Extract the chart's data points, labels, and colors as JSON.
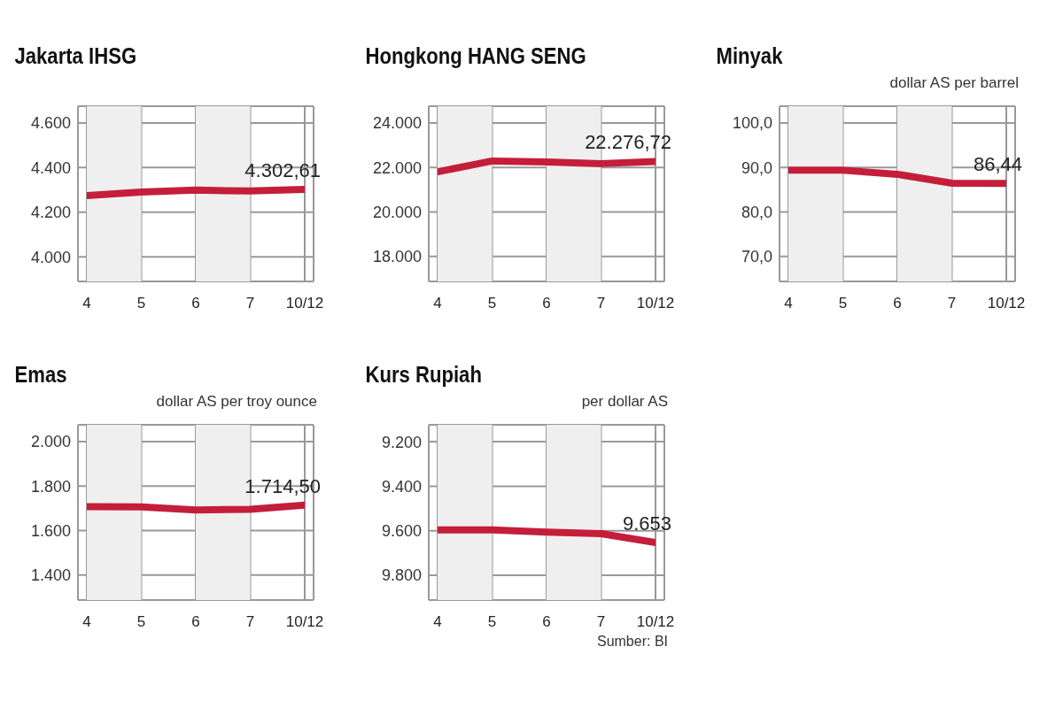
{
  "chart_data": [
    {
      "type": "line",
      "title": "Jakarta IHSG",
      "categories": [
        "4",
        "5",
        "6",
        "7",
        "10/12"
      ],
      "values": [
        4275,
        4290,
        4299,
        4295,
        4302.61
      ],
      "value_labels": [
        null,
        null,
        null,
        null,
        "4.302,61"
      ],
      "color": "#c41e3a",
      "ylim": [
        3890,
        4675
      ],
      "yticks": [
        {
          "value": 4000,
          "label": "4.000"
        },
        {
          "value": 4200,
          "label": "4.200"
        },
        {
          "value": 4400,
          "label": "4.400"
        },
        {
          "value": 4600,
          "label": "4.600"
        }
      ],
      "grid": true,
      "marker": "none",
      "bands": [
        {
          "axis": "x",
          "from": "4",
          "to": "5",
          "color": "#efefef"
        },
        {
          "axis": "x",
          "from": "6",
          "to": "7",
          "color": "#efefef"
        }
      ]
    },
    {
      "type": "line",
      "title": "Hongkong HANG SENG",
      "categories": [
        "4",
        "5",
        "6",
        "7",
        "10/12"
      ],
      "values": [
        21807,
        22296,
        22252,
        22178,
        22276.72
      ],
      "value_labels": [
        null,
        null,
        null,
        null,
        "22.276,72"
      ],
      "color": "#c41e3a",
      "ylim": [
        16880,
        24760
      ],
      "yticks": [
        {
          "value": 18000,
          "label": "18.000"
        },
        {
          "value": 20000,
          "label": "20.000"
        },
        {
          "value": 22000,
          "label": "22.000"
        },
        {
          "value": 24000,
          "label": "24.000"
        }
      ],
      "grid": true,
      "marker": "none",
      "bands": [
        {
          "axis": "x",
          "from": "4",
          "to": "5",
          "color": "#efefef"
        },
        {
          "axis": "x",
          "from": "6",
          "to": "7",
          "color": "#efefef"
        }
      ]
    },
    {
      "type": "line",
      "title": "Minyak",
      "subtitle": "dollar AS per barrel",
      "categories": [
        "4",
        "5",
        "6",
        "7",
        "10/12"
      ],
      "values": [
        89.4,
        89.4,
        88.5,
        86.5,
        86.44
      ],
      "value_labels": [
        null,
        null,
        null,
        null,
        "86,44"
      ],
      "color": "#c41e3a",
      "ylim": [
        64.4,
        103.8
      ],
      "yticks": [
        {
          "value": 70,
          "label": "70,0"
        },
        {
          "value": 80,
          "label": "80,0"
        },
        {
          "value": 90,
          "label": "90,0"
        },
        {
          "value": 100,
          "label": "100,0"
        }
      ],
      "grid": true,
      "marker": "none",
      "bands": [
        {
          "axis": "x",
          "from": "4",
          "to": "5",
          "color": "#efefef"
        },
        {
          "axis": "x",
          "from": "6",
          "to": "7",
          "color": "#efefef"
        }
      ]
    },
    {
      "type": "line",
      "title": "Emas",
      "subtitle": "dollar AS per troy ounce",
      "categories": [
        "4",
        "5",
        "6",
        "7",
        "10/12"
      ],
      "values": [
        1708,
        1707,
        1693,
        1696,
        1714.5
      ],
      "value_labels": [
        null,
        null,
        null,
        null,
        "1.714,50"
      ],
      "color": "#c41e3a",
      "ylim": [
        1288,
        2076
      ],
      "yticks": [
        {
          "value": 1400,
          "label": "1.400"
        },
        {
          "value": 1600,
          "label": "1.600"
        },
        {
          "value": 1800,
          "label": "1.800"
        },
        {
          "value": 2000,
          "label": "2.000"
        }
      ],
      "grid": true,
      "marker": "none",
      "bands": [
        {
          "axis": "x",
          "from": "4",
          "to": "5",
          "color": "#efefef"
        },
        {
          "axis": "x",
          "from": "6",
          "to": "7",
          "color": "#efefef"
        }
      ]
    },
    {
      "type": "line",
      "title": "Kurs Rupiah",
      "subtitle": "per dollar AS",
      "annotations": [
        "Sumber: BI"
      ],
      "categories": [
        "4",
        "5",
        "6",
        "7",
        "10/12"
      ],
      "values": [
        9596,
        9596,
        9606,
        9613,
        9653
      ],
      "value_labels": [
        null,
        null,
        null,
        null,
        "9.653"
      ],
      "color": "#c41e3a",
      "ylim": [
        9911,
        9124
      ],
      "yticks": [
        {
          "value": 9200,
          "label": "9.200"
        },
        {
          "value": 9400,
          "label": "9.400"
        },
        {
          "value": 9600,
          "label": "9.600"
        },
        {
          "value": 9800,
          "label": "9.800"
        }
      ],
      "grid": true,
      "marker": "none",
      "bands": [
        {
          "axis": "x",
          "from": "4",
          "to": "5",
          "color": "#efefef"
        },
        {
          "axis": "x",
          "from": "6",
          "to": "7",
          "color": "#efefef"
        }
      ]
    }
  ]
}
